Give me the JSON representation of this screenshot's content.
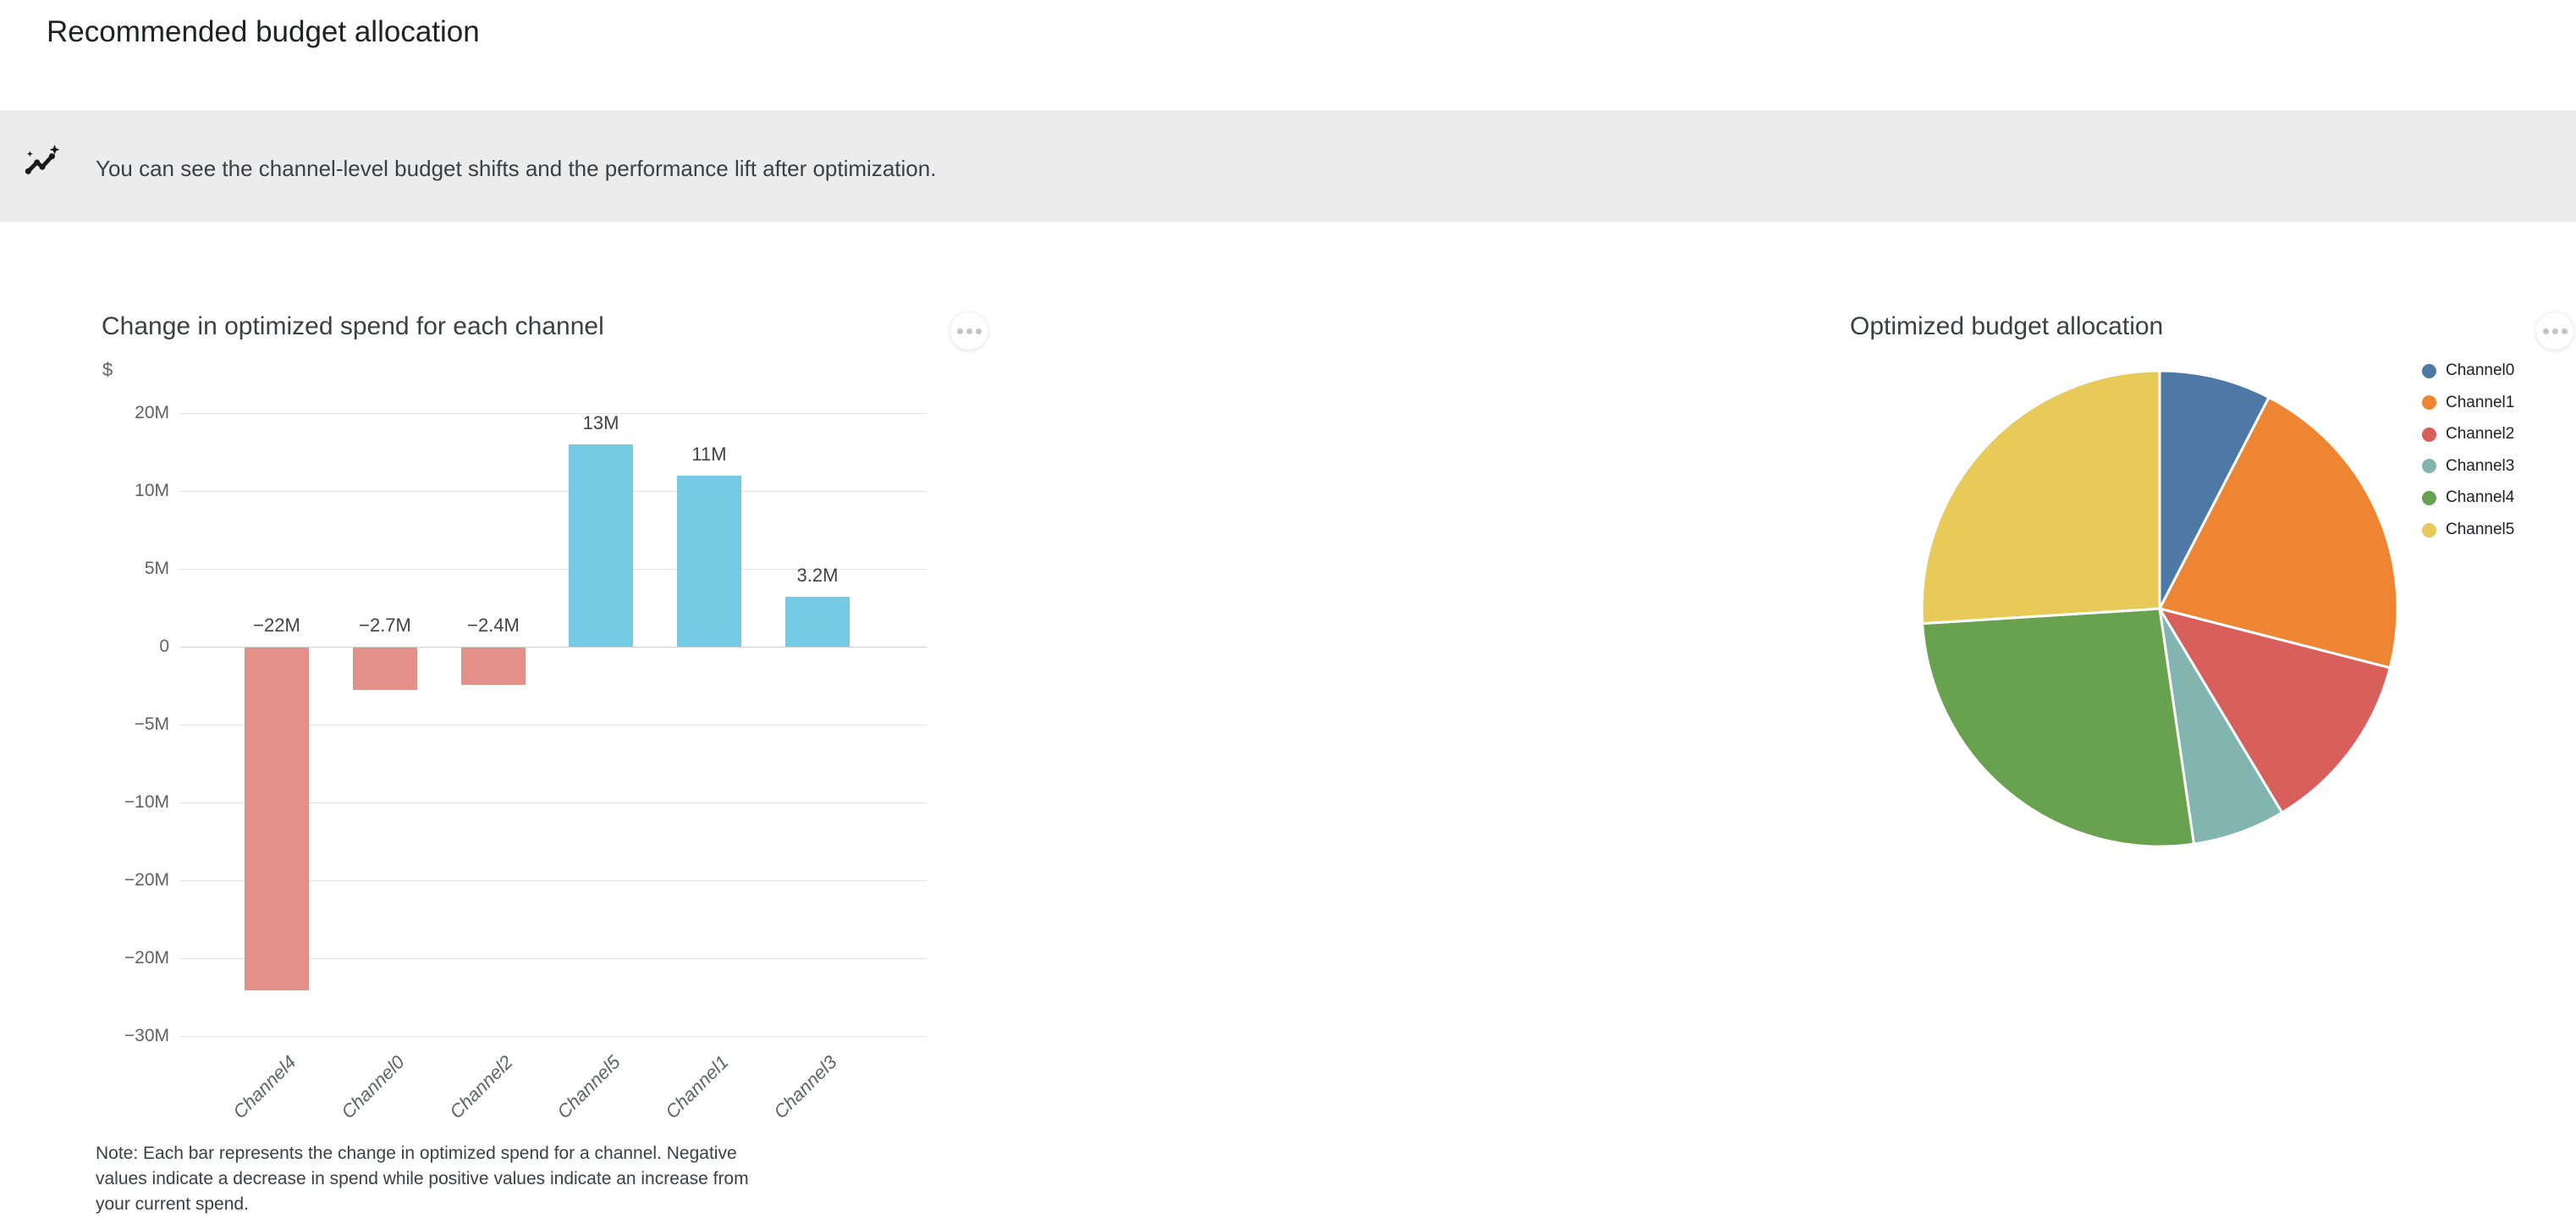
{
  "header": {
    "title": "Recommended budget allocation"
  },
  "banner": {
    "icon": "insights-icon",
    "text": "You can see the channel-level budget shifts and the performance lift after optimization."
  },
  "menu_icon": "more-options-icon",
  "chart_data": [
    {
      "type": "bar",
      "title": "Change in optimized spend for each channel",
      "ylabel": "$",
      "categories": [
        "Channel4",
        "Channel0",
        "Channel2",
        "Channel5",
        "Channel1",
        "Channel3"
      ],
      "values": [
        -22,
        -2.7,
        -2.4,
        13,
        11,
        3.2
      ],
      "value_labels": [
        "−22M",
        "−2.7M",
        "−2.4M",
        "13M",
        "11M",
        "3.2M"
      ],
      "y_tick_labels": [
        "20M",
        "10M",
        "5M",
        "0",
        "−5M",
        "−10M",
        "−20M",
        "−20M",
        "−30M"
      ],
      "ylim_px_per_5M_gridline": true,
      "grid": true,
      "colors": {
        "positive": "#74cbe3",
        "negative": "#e29088"
      },
      "note": "Note: Each bar represents the change in optimized spend for a channel. Negative\nvalues indicate a decrease in spend while positive values indicate an increase from\nyour current spend."
    },
    {
      "type": "pie",
      "title": "Optimized budget allocation",
      "legend_position": "right",
      "start_angle_deg": 0,
      "direction": "clockwise",
      "slices": [
        {
          "label": "Channel0",
          "percent": 7.6,
          "color": "#4e79a7"
        },
        {
          "label": "Channel1",
          "percent": 21.4,
          "color": "#ee8532"
        },
        {
          "label": "Channel2",
          "percent": 12.4,
          "color": "#d85f5b"
        },
        {
          "label": "Channel3",
          "percent": 6.3,
          "color": "#83b5b0"
        },
        {
          "label": "Channel4",
          "percent": 26.3,
          "color": "#69a24e"
        },
        {
          "label": "Channel5",
          "percent": 26.0,
          "color": "#e8ca58"
        }
      ]
    }
  ]
}
